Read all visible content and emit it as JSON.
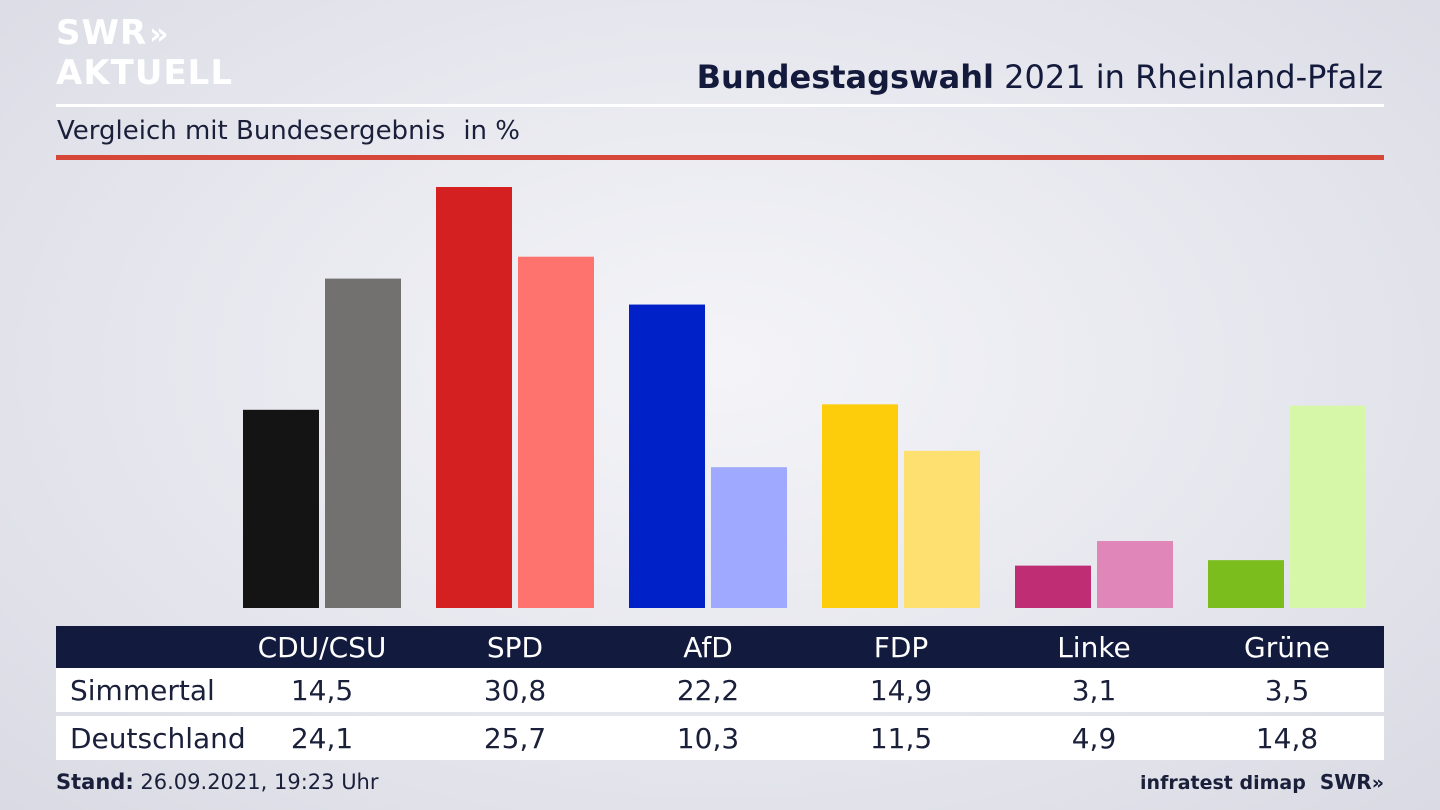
{
  "logo": {
    "line1": "SWR",
    "line2": "AKTUELL",
    "arrows": "»"
  },
  "header": {
    "title_bold": "Bundestagswahl",
    "title_rest": "2021 in Rheinland-Pfalz"
  },
  "subtitle": {
    "text": "Vergleich mit Bundesergebnis",
    "unit": "in %"
  },
  "chart_data": {
    "type": "bar",
    "title": "Bundestagswahl 2021 in Rheinland-Pfalz",
    "subtitle": "Vergleich mit Bundesergebnis in %",
    "categories": [
      "CDU/CSU",
      "SPD",
      "AfD",
      "FDP",
      "Linke",
      "Grüne"
    ],
    "series": [
      {
        "name": "Simmertal",
        "values": [
          14.5,
          30.8,
          22.2,
          14.9,
          3.1,
          3.5
        ],
        "colors": [
          "#141414",
          "#d42020",
          "#0020c8",
          "#fdcc0a",
          "#bf2d75",
          "#7cbd1e"
        ]
      },
      {
        "name": "Deutschland",
        "values": [
          24.1,
          25.7,
          10.3,
          11.5,
          4.9,
          14.8
        ],
        "colors": [
          "#737170",
          "#ff736e",
          "#9ea9ff",
          "#fde070",
          "#e086b8",
          "#d6f7a8"
        ]
      }
    ],
    "ylim": [
      0,
      30.8
    ],
    "grid": false,
    "legend": "table-below"
  },
  "table": {
    "headers": [
      "CDU/CSU",
      "SPD",
      "AfD",
      "FDP",
      "Linke",
      "Grüne"
    ],
    "rows": [
      {
        "label": "Simmertal",
        "values": [
          "14,5",
          "30,8",
          "22,2",
          "14,9",
          "3,1",
          "3,5"
        ]
      },
      {
        "label": "Deutschland",
        "values": [
          "24,1",
          "25,7",
          "10,3",
          "11,5",
          "4,9",
          "14,8"
        ]
      }
    ]
  },
  "footer": {
    "stand_label": "Stand:",
    "stand_value": "26.09.2021, 19:23 Uhr",
    "source": "infratest dimap",
    "brand": "SWR",
    "brand_arrows": "»"
  }
}
